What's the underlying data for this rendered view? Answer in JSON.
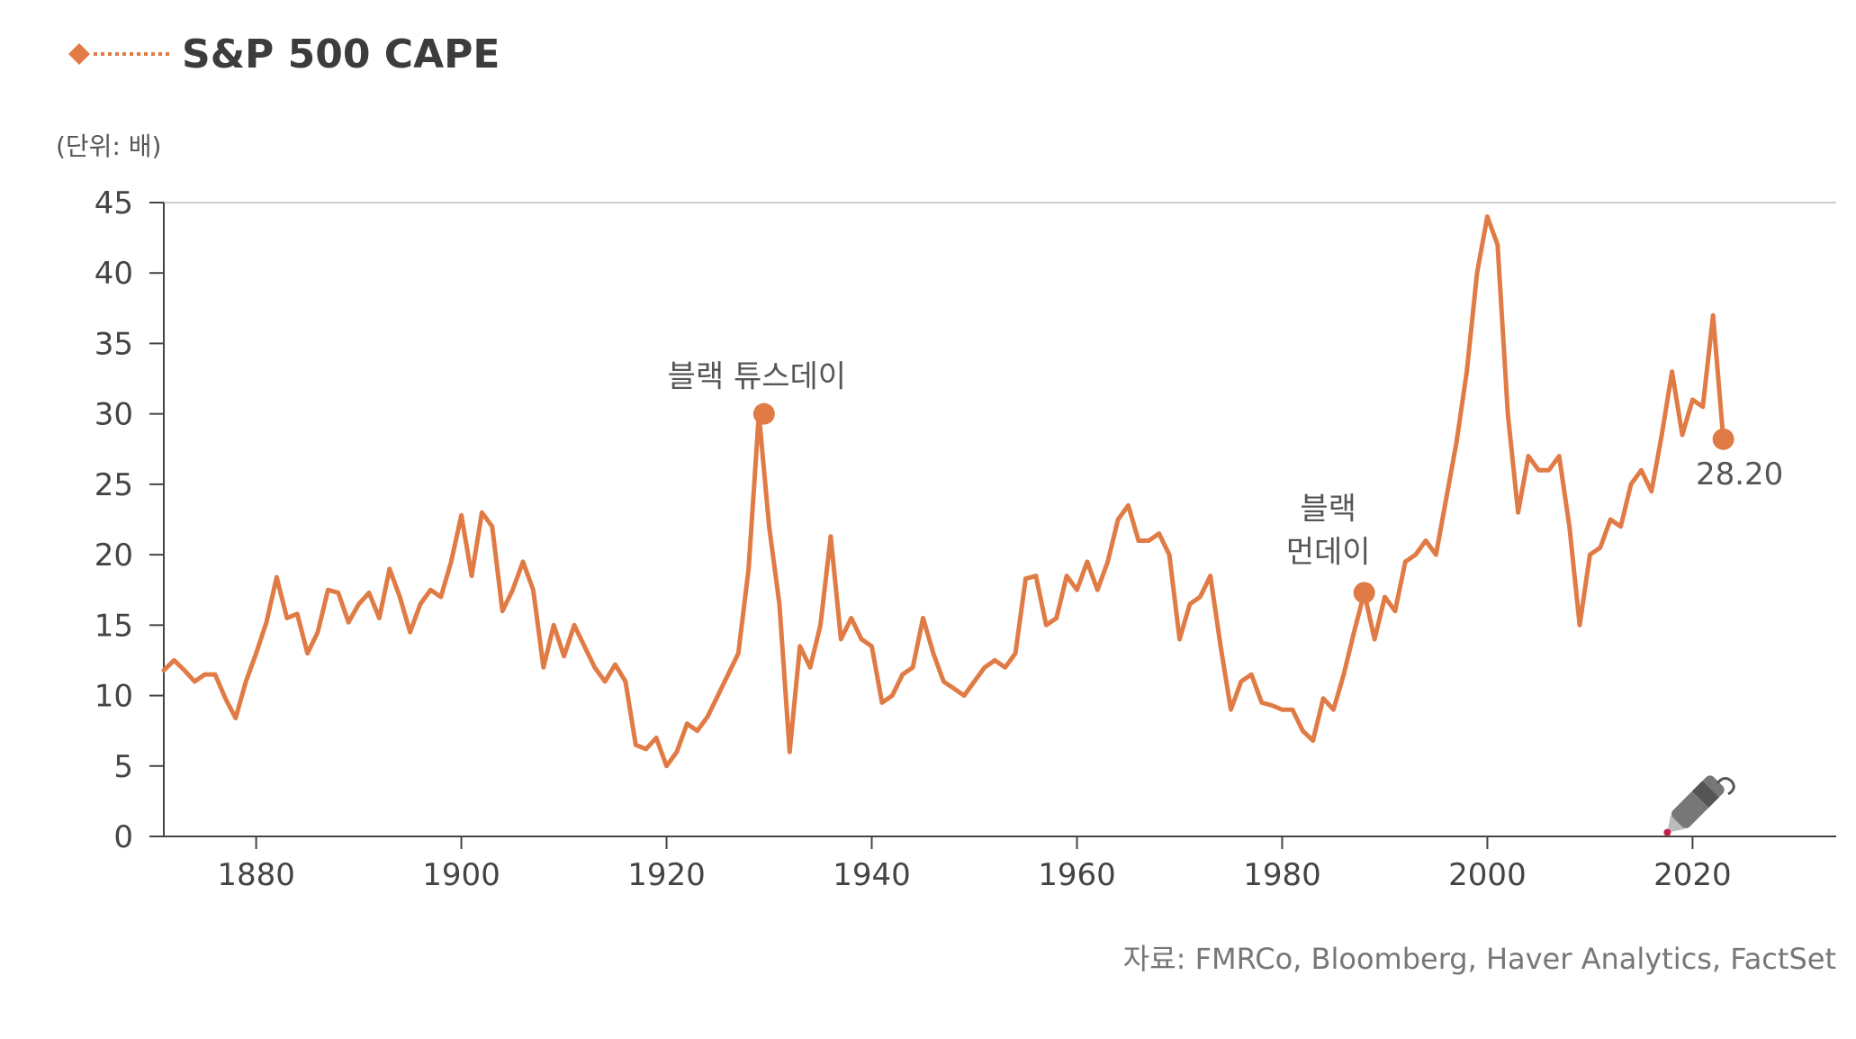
{
  "chart_data": {
    "type": "line",
    "title": "S&P 500 CAPE",
    "unit_label": "(단위: 배)",
    "source": "자료: FMRCo, Bloomberg, Haver Analytics, FactSet",
    "xlim": [
      1871,
      2034
    ],
    "ylim": [
      0,
      45
    ],
    "x_ticks": [
      1880,
      1900,
      1920,
      1940,
      1960,
      1980,
      2000,
      2020
    ],
    "y_ticks": [
      0,
      5,
      10,
      15,
      20,
      25,
      30,
      35,
      40,
      45
    ],
    "grid": "top border only",
    "line_color": "#e07b45",
    "series": [
      {
        "name": "S&P 500 CAPE",
        "points": [
          [
            1871,
            11.8
          ],
          [
            1872,
            12.5
          ],
          [
            1873,
            11.8
          ],
          [
            1874,
            11.0
          ],
          [
            1875,
            11.5
          ],
          [
            1876,
            11.5
          ],
          [
            1877,
            9.8
          ],
          [
            1878,
            8.4
          ],
          [
            1879,
            11.0
          ],
          [
            1880,
            13.0
          ],
          [
            1881,
            15.2
          ],
          [
            1882,
            18.4
          ],
          [
            1883,
            15.5
          ],
          [
            1884,
            15.8
          ],
          [
            1885,
            13.0
          ],
          [
            1886,
            14.5
          ],
          [
            1887,
            17.5
          ],
          [
            1888,
            17.3
          ],
          [
            1889,
            15.2
          ],
          [
            1890,
            16.5
          ],
          [
            1891,
            17.3
          ],
          [
            1892,
            15.5
          ],
          [
            1893,
            19.0
          ],
          [
            1894,
            17.0
          ],
          [
            1895,
            14.5
          ],
          [
            1896,
            16.5
          ],
          [
            1897,
            17.5
          ],
          [
            1898,
            17.0
          ],
          [
            1899,
            19.5
          ],
          [
            1900,
            22.8
          ],
          [
            1901,
            18.5
          ],
          [
            1902,
            23.0
          ],
          [
            1903,
            22.0
          ],
          [
            1904,
            16.0
          ],
          [
            1905,
            17.5
          ],
          [
            1906,
            19.5
          ],
          [
            1907,
            17.5
          ],
          [
            1908,
            12.0
          ],
          [
            1909,
            15.0
          ],
          [
            1910,
            12.8
          ],
          [
            1911,
            15.0
          ],
          [
            1912,
            13.5
          ],
          [
            1913,
            12.0
          ],
          [
            1914,
            11.0
          ],
          [
            1915,
            12.2
          ],
          [
            1916,
            11.0
          ],
          [
            1917,
            6.5
          ],
          [
            1918,
            6.2
          ],
          [
            1919,
            7.0
          ],
          [
            1920,
            5.0
          ],
          [
            1921,
            6.0
          ],
          [
            1922,
            8.0
          ],
          [
            1923,
            7.5
          ],
          [
            1924,
            8.5
          ],
          [
            1925,
            10.0
          ],
          [
            1926,
            11.5
          ],
          [
            1927,
            13.0
          ],
          [
            1928,
            19.0
          ],
          [
            1929,
            30.0
          ],
          [
            1930,
            22.0
          ],
          [
            1931,
            16.5
          ],
          [
            1932,
            6.0
          ],
          [
            1933,
            13.5
          ],
          [
            1934,
            12.0
          ],
          [
            1935,
            15.0
          ],
          [
            1936,
            21.3
          ],
          [
            1937,
            14.0
          ],
          [
            1938,
            15.5
          ],
          [
            1939,
            14.0
          ],
          [
            1940,
            13.5
          ],
          [
            1941,
            9.5
          ],
          [
            1942,
            10.0
          ],
          [
            1943,
            11.5
          ],
          [
            1944,
            12.0
          ],
          [
            1945,
            15.5
          ],
          [
            1946,
            13.0
          ],
          [
            1947,
            11.0
          ],
          [
            1948,
            10.5
          ],
          [
            1949,
            10.0
          ],
          [
            1950,
            11.0
          ],
          [
            1951,
            12.0
          ],
          [
            1952,
            12.5
          ],
          [
            1953,
            12.0
          ],
          [
            1954,
            13.0
          ],
          [
            1955,
            18.3
          ],
          [
            1956,
            18.5
          ],
          [
            1957,
            15.0
          ],
          [
            1958,
            15.5
          ],
          [
            1959,
            18.5
          ],
          [
            1960,
            17.5
          ],
          [
            1961,
            19.5
          ],
          [
            1962,
            17.5
          ],
          [
            1963,
            19.5
          ],
          [
            1964,
            22.5
          ],
          [
            1965,
            23.5
          ],
          [
            1966,
            21.0
          ],
          [
            1967,
            21.0
          ],
          [
            1968,
            21.5
          ],
          [
            1969,
            20.0
          ],
          [
            1970,
            14.0
          ],
          [
            1971,
            16.5
          ],
          [
            1972,
            17.0
          ],
          [
            1973,
            18.5
          ],
          [
            1974,
            13.5
          ],
          [
            1975,
            9.0
          ],
          [
            1976,
            11.0
          ],
          [
            1977,
            11.5
          ],
          [
            1978,
            9.5
          ],
          [
            1979,
            9.3
          ],
          [
            1980,
            9.0
          ],
          [
            1981,
            9.0
          ],
          [
            1982,
            7.5
          ],
          [
            1983,
            6.8
          ],
          [
            1984,
            9.8
          ],
          [
            1985,
            9.0
          ],
          [
            1986,
            11.5
          ],
          [
            1987,
            14.5
          ],
          [
            1988,
            17.3
          ],
          [
            1989,
            14.0
          ],
          [
            1990,
            17.0
          ],
          [
            1991,
            16.0
          ],
          [
            1992,
            19.5
          ],
          [
            1993,
            20.0
          ],
          [
            1994,
            21.0
          ],
          [
            1995,
            20.0
          ],
          [
            1996,
            24.0
          ],
          [
            1997,
            28.0
          ],
          [
            1998,
            33.0
          ],
          [
            1999,
            40.0
          ],
          [
            2000,
            44.0
          ],
          [
            2001,
            42.0
          ],
          [
            2002,
            30.0
          ],
          [
            2003,
            23.0
          ],
          [
            2004,
            27.0
          ],
          [
            2005,
            26.0
          ],
          [
            2006,
            26.0
          ],
          [
            2007,
            27.0
          ],
          [
            2008,
            22.0
          ],
          [
            2009,
            15.0
          ],
          [
            2010,
            20.0
          ],
          [
            2011,
            20.5
          ],
          [
            2012,
            22.5
          ],
          [
            2013,
            22.0
          ],
          [
            2014,
            25.0
          ],
          [
            2015,
            26.0
          ],
          [
            2016,
            24.5
          ],
          [
            2017,
            28.5
          ],
          [
            2018,
            33.0
          ],
          [
            2019,
            28.5
          ],
          [
            2020,
            31.0
          ],
          [
            2021,
            30.5
          ],
          [
            2022,
            37.0
          ],
          [
            2023,
            28.2
          ]
        ]
      }
    ],
    "markers": [
      {
        "x": 1929.5,
        "y": 30.0,
        "label": "블랙 튜스데이"
      },
      {
        "x": 1988,
        "y": 17.3,
        "label_lines": [
          "블랙",
          "먼데이"
        ]
      },
      {
        "x": 2023,
        "y": 28.2,
        "label": "28.20"
      }
    ]
  }
}
